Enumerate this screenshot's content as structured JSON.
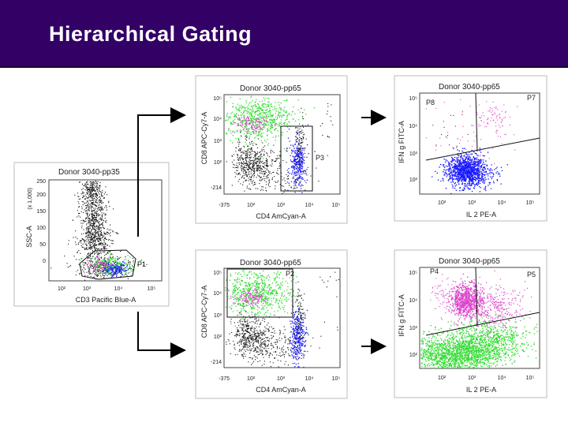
{
  "slide": {
    "title": "Hierarchical Gating"
  },
  "colors": {
    "header_bg": "#330066",
    "black_dots": "#111111",
    "green_dots": "#33dd33",
    "magenta_dots": "#dd44cc",
    "blue_dots": "#1a1aff"
  },
  "plots": [
    {
      "id": "ssc-cd3",
      "title": "Donor 3040-pp35",
      "x_label": "CD3 Pacific Blue-A",
      "y_label": "SSC-A",
      "y_unit": "(x 1,000)",
      "x_ticks": [
        "10²",
        "10³",
        "10⁴",
        "10⁵"
      ],
      "y_ticks": [
        "0",
        "50",
        "100",
        "150",
        "200",
        "250"
      ],
      "gates": [
        {
          "name": "P1"
        }
      ]
    },
    {
      "id": "cd8-cd4-top",
      "title": "Donor 3040-pp65",
      "x_label": "CD4 AmCyan-A",
      "y_label": "CD8 APC-Cy7-A",
      "x_ticks": [
        "-375",
        "10²",
        "10³",
        "10⁴",
        "10⁵"
      ],
      "y_ticks": [
        "-214",
        "10²",
        "10³",
        "10⁴",
        "10⁵"
      ],
      "gates": [
        {
          "name": "P3"
        }
      ]
    },
    {
      "id": "cd8-cd4-bottom",
      "title": "Donor 3040-pp65",
      "x_label": "CD4 AmCyan-A",
      "y_label": "CD8 APC-Cy7-A",
      "x_ticks": [
        "-375",
        "10²",
        "10³",
        "10⁴",
        "10⁵"
      ],
      "y_ticks": [
        "-214",
        "10²",
        "10³",
        "10⁴",
        "10⁵"
      ],
      "gates": [
        {
          "name": "P2"
        }
      ]
    },
    {
      "id": "ifn-il2-top",
      "title": "Donor 3040-pp65",
      "x_label": "IL 2 PE-A",
      "y_label": "IFN g FITC-A",
      "x_ticks": [
        "10²",
        "10³",
        "10⁴",
        "10⁵"
      ],
      "y_ticks": [
        "10²",
        "10³",
        "10⁴",
        "10⁵"
      ],
      "gates": [
        {
          "name": "P8"
        },
        {
          "name": "P7"
        }
      ]
    },
    {
      "id": "ifn-il2-bottom",
      "title": "Donor 3040-pp65",
      "x_label": "IL 2 PE-A",
      "y_label": "IFN g FITC-A",
      "x_ticks": [
        "10²",
        "10³",
        "10⁴",
        "10⁵"
      ],
      "y_ticks": [
        "10²",
        "10³",
        "10⁴",
        "10⁵"
      ],
      "gates": [
        {
          "name": "P4"
        },
        {
          "name": "P5"
        }
      ]
    }
  ]
}
